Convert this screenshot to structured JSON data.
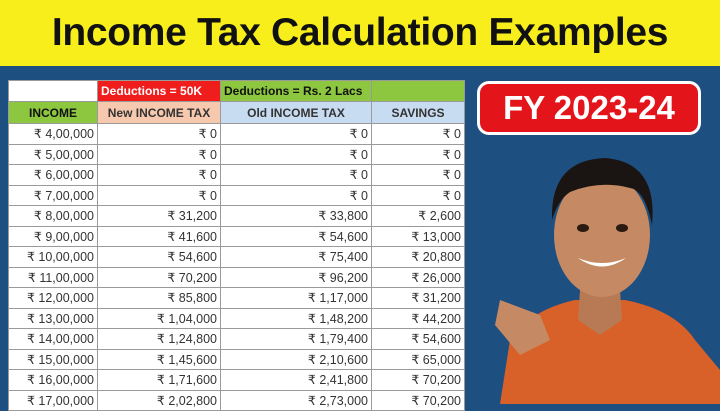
{
  "title": "Income Tax Calculation Examples",
  "badge": "FY 2023-24",
  "table": {
    "group_headers": [
      "",
      "Deductions = 50K",
      "Deductions = Rs. 2 Lacs",
      ""
    ],
    "columns": [
      "INCOME",
      "New INCOME TAX",
      "Old INCOME TAX",
      "SAVINGS"
    ],
    "rows": [
      [
        "₹ 4,00,000",
        "₹ 0",
        "₹ 0",
        "₹ 0"
      ],
      [
        "₹ 5,00,000",
        "₹ 0",
        "₹ 0",
        "₹ 0"
      ],
      [
        "₹ 6,00,000",
        "₹ 0",
        "₹ 0",
        "₹ 0"
      ],
      [
        "₹ 7,00,000",
        "₹ 0",
        "₹ 0",
        "₹ 0"
      ],
      [
        "₹ 8,00,000",
        "₹ 31,200",
        "₹ 33,800",
        "₹ 2,600"
      ],
      [
        "₹ 9,00,000",
        "₹ 41,600",
        "₹ 54,600",
        "₹ 13,000"
      ],
      [
        "₹ 10,00,000",
        "₹ 54,600",
        "₹ 75,400",
        "₹ 20,800"
      ],
      [
        "₹ 11,00,000",
        "₹ 70,200",
        "₹ 96,200",
        "₹ 26,000"
      ],
      [
        "₹ 12,00,000",
        "₹ 85,800",
        "₹ 1,17,000",
        "₹ 31,200"
      ],
      [
        "₹ 13,00,000",
        "₹ 1,04,000",
        "₹ 1,48,200",
        "₹ 44,200"
      ],
      [
        "₹ 14,00,000",
        "₹ 1,24,800",
        "₹ 1,79,400",
        "₹ 54,600"
      ],
      [
        "₹ 15,00,000",
        "₹ 1,45,600",
        "₹ 2,10,600",
        "₹ 65,000"
      ],
      [
        "₹ 16,00,000",
        "₹ 1,71,600",
        "₹ 2,41,800",
        "₹ 70,200"
      ],
      [
        "₹ 17,00,000",
        "₹ 2,02,800",
        "₹ 2,73,000",
        "₹ 70,200"
      ]
    ]
  },
  "colors": {
    "title_bg": "#f7ee1b",
    "background": "#1d4f80",
    "badge": "#e4141b",
    "deduction_new": "#f01d1d",
    "deduction_old": "#8dc63f"
  }
}
